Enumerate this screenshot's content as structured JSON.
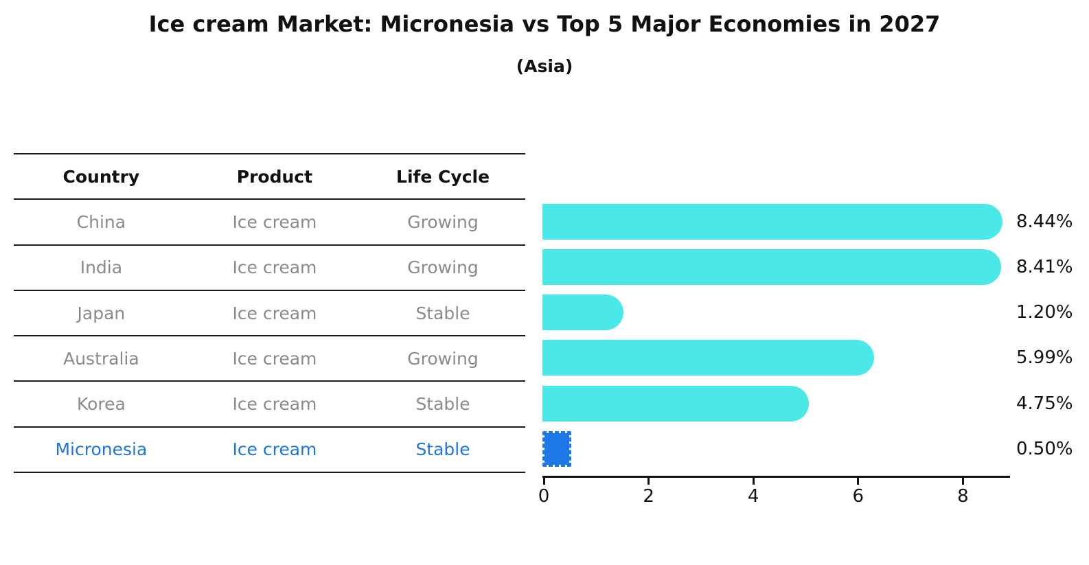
{
  "chart_data": {
    "type": "bar",
    "orientation": "horizontal",
    "title": "Ice cream Market: Micronesia vs Top 5 Major Economies in 2027",
    "subtitle": "(Asia)",
    "categories": [
      "China",
      "India",
      "Japan",
      "Australia",
      "Korea",
      "Micronesia"
    ],
    "values": [
      8.44,
      8.41,
      1.2,
      5.99,
      4.75,
      0.5
    ],
    "value_labels": [
      "8.44%",
      "8.41%",
      "1.20%",
      "5.99%",
      "4.75%",
      "0.50%"
    ],
    "highlight_index": 5,
    "xlabel": "",
    "ylabel": "",
    "xlim": [
      0,
      8.9
    ],
    "x_ticks": [
      0,
      2,
      4,
      6,
      8
    ],
    "grid": false,
    "legend": false
  },
  "table": {
    "headers": [
      "Country",
      "Product",
      "Life Cycle"
    ],
    "rows": [
      {
        "country": "China",
        "product": "Ice cream",
        "life_cycle": "Growing",
        "highlight": false
      },
      {
        "country": "India",
        "product": "Ice cream",
        "life_cycle": "Growing",
        "highlight": false
      },
      {
        "country": "Japan",
        "product": "Ice cream",
        "life_cycle": "Stable",
        "highlight": false
      },
      {
        "country": "Australia",
        "product": "Ice cream",
        "life_cycle": "Growing",
        "highlight": false
      },
      {
        "country": "Korea",
        "product": "Ice cream",
        "life_cycle": "Stable",
        "highlight": false
      },
      {
        "country": "Micronesia",
        "product": "Ice cream",
        "life_cycle": "Stable",
        "highlight": true
      }
    ]
  },
  "colors": {
    "bar": "#4BE8E8",
    "highlight_bar": "#1E78E8",
    "highlight_text": "#1F74DC",
    "row_text": "#8A8A8A",
    "heading_text": "#111111",
    "line": "#1A1A1A"
  }
}
